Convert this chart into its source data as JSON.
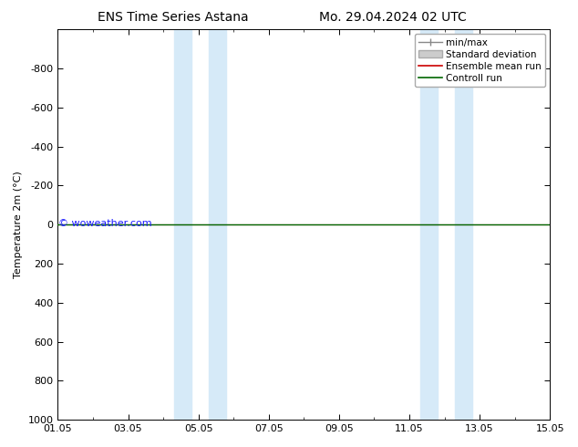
{
  "title_left": "ENS Time Series Astana",
  "title_right": "Mo. 29.04.2024 02 UTC",
  "ylabel": "Temperature 2m (°C)",
  "ylim_bottom": 1000,
  "ylim_top": -1000,
  "yticks": [
    -800,
    -600,
    -400,
    -200,
    0,
    200,
    400,
    600,
    800,
    1000
  ],
  "xlim": [
    0,
    14
  ],
  "xtick_labels": [
    "01.05",
    "03.05",
    "05.05",
    "07.05",
    "09.05",
    "11.05",
    "13.05",
    "15.05"
  ],
  "xtick_positions": [
    0,
    2,
    4,
    6,
    8,
    10,
    12,
    14
  ],
  "blue_bands": [
    [
      3.3,
      3.8
    ],
    [
      4.3,
      4.8
    ],
    [
      10.3,
      10.8
    ],
    [
      11.3,
      11.8
    ]
  ],
  "control_run_y": 0,
  "ensemble_mean_y": 0,
  "watermark": "© woweather.com",
  "watermark_color": "#1a1aff",
  "bg_color": "#ffffff",
  "plot_bg_color": "#ffffff",
  "band_color": "#d6eaf8",
  "control_run_color": "#006600",
  "ensemble_mean_color": "#cc0000",
  "std_dev_color": "#cccccc",
  "minmax_color": "#888888",
  "title_fontsize": 10,
  "axis_label_fontsize": 8,
  "tick_fontsize": 8,
  "legend_fontsize": 7.5
}
